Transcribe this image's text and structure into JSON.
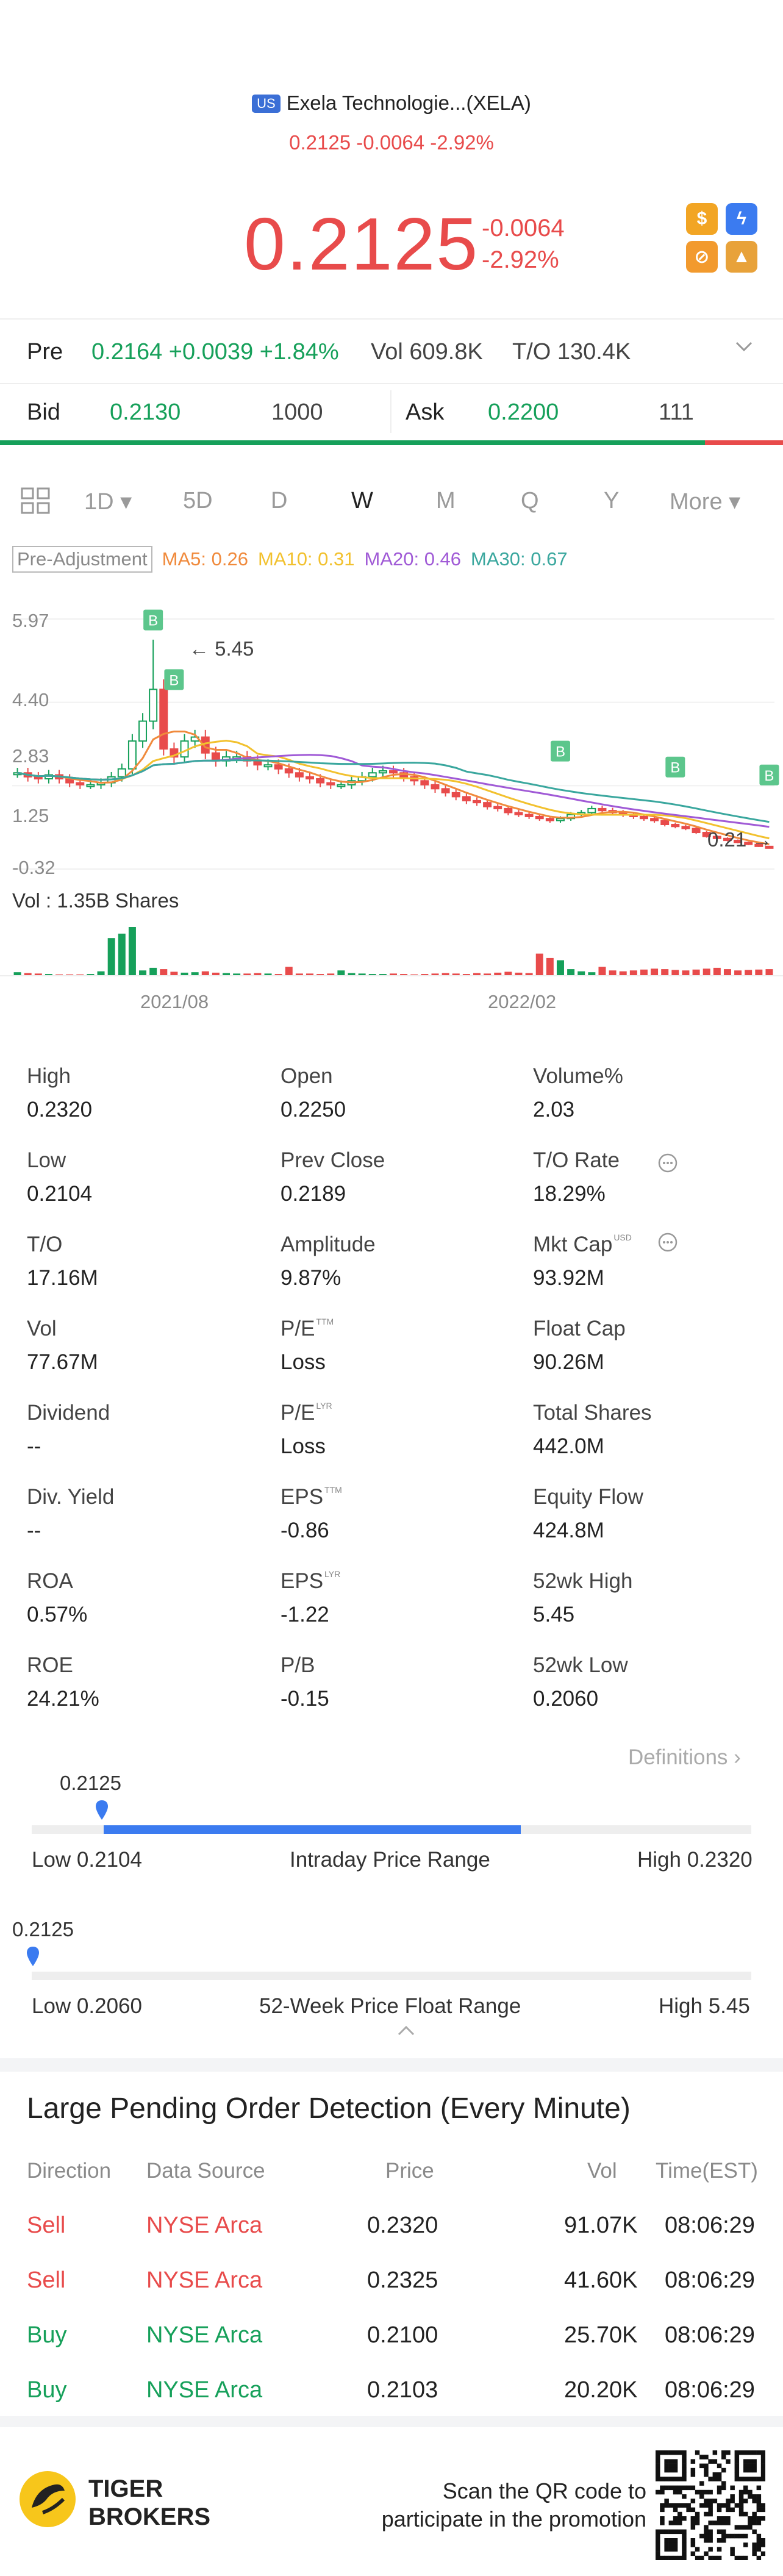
{
  "header": {
    "market_flag": "US",
    "title": "Exela Technologie...(XELA)",
    "subline": "0.2125 -0.0064 -2.92%",
    "price": "0.2125",
    "change": "-0.0064",
    "change_pct": "-2.92%"
  },
  "colors": {
    "up": "#16a05a",
    "down": "#e84b4b",
    "accent": "#3b7bf0"
  },
  "pre": {
    "label": "Pre",
    "price_change": "0.2164 +0.0039 +1.84%",
    "vol": "Vol 609.8K",
    "to": "T/O 130.4K"
  },
  "bidask": {
    "bid_label": "Bid",
    "bid": "0.2130",
    "bid_size": "1000",
    "ask_label": "Ask",
    "ask": "0.2200",
    "ask_size": "111",
    "bid_share": 0.9
  },
  "tabs": [
    "1D",
    "5D",
    "D",
    "W",
    "M",
    "Q",
    "Y",
    "More"
  ],
  "active_tab": "W",
  "ma": {
    "pre_adj": "Pre-Adjustment",
    "ma5": "MA5: 0.26",
    "ma10": "MA10: 0.31",
    "ma20": "MA20: 0.46",
    "ma30": "MA30: 0.67"
  },
  "chart_data": {
    "type": "candlestick",
    "y_ticks": [
      "5.97",
      "4.40",
      "2.83",
      "1.25",
      "-0.32"
    ],
    "ylim": [
      -0.32,
      5.97
    ],
    "x_ticks": [
      "2021/08",
      "2022/02"
    ],
    "annotations": [
      "5.45",
      "0.21"
    ],
    "volume_label": "Vol  : 1.35B Shares",
    "trade_marker": "B",
    "ma_colors": {
      "ma5": "#f08a3c",
      "ma10": "#f2c12e",
      "ma20": "#a05ad6",
      "ma30": "#3aa79e"
    },
    "weekly_close": [
      2.1,
      2.0,
      1.95,
      2.05,
      1.95,
      1.85,
      1.8,
      1.8,
      1.85,
      2.0,
      2.2,
      2.9,
      3.4,
      4.2,
      2.7,
      2.5,
      2.9,
      3.0,
      2.6,
      2.4,
      2.5,
      2.5,
      2.4,
      2.3,
      2.3,
      2.2,
      2.1,
      2.0,
      1.95,
      1.85,
      1.8,
      1.8,
      1.9,
      2.0,
      2.1,
      2.15,
      2.1,
      2.0,
      1.9,
      1.8,
      1.7,
      1.6,
      1.5,
      1.4,
      1.35,
      1.25,
      1.2,
      1.1,
      1.05,
      1.0,
      0.95,
      0.9,
      0.95,
      1.05,
      1.1,
      1.2,
      1.15,
      1.1,
      1.05,
      1.0,
      0.95,
      0.9,
      0.8,
      0.75,
      0.7,
      0.6,
      0.5,
      0.45,
      0.4,
      0.35,
      0.3,
      0.25,
      0.21
    ],
    "weekly_volume": [
      8,
      6,
      5,
      4,
      3,
      3,
      3,
      4,
      10,
      85,
      95,
      110,
      12,
      18,
      15,
      9,
      7,
      8,
      10,
      7,
      6,
      5,
      5,
      6,
      5,
      4,
      20,
      5,
      5,
      4,
      5,
      12,
      6,
      5,
      4,
      4,
      5,
      4,
      3,
      4,
      5,
      6,
      5,
      4,
      6,
      5,
      7,
      9,
      7,
      6,
      50,
      40,
      35,
      15,
      10,
      8,
      20,
      12,
      10,
      12,
      14,
      16,
      15,
      13,
      12,
      14,
      16,
      18,
      15,
      12,
      13,
      14,
      15
    ]
  },
  "stats": [
    [
      {
        "label": "High",
        "value": "0.2320"
      },
      {
        "label": "Open",
        "value": "0.2250"
      },
      {
        "label": "Volume%",
        "value": "2.03"
      }
    ],
    [
      {
        "label": "Low",
        "value": "0.2104"
      },
      {
        "label": "Prev Close",
        "value": "0.2189"
      },
      {
        "label": "T/O Rate",
        "value": "18.29%"
      }
    ],
    [
      {
        "label": "T/O",
        "value": "17.16M"
      },
      {
        "label": "Amplitude",
        "value": "9.87%"
      },
      {
        "label": "Mkt Cap",
        "value": "93.92M",
        "sup": "USD"
      }
    ],
    [
      {
        "label": "Vol",
        "value": "77.67M"
      },
      {
        "label": "P/E",
        "value": "Loss",
        "sup": "TTM"
      },
      {
        "label": "Float Cap",
        "value": "90.26M"
      }
    ],
    [
      {
        "label": "Dividend",
        "value": "--"
      },
      {
        "label": "P/E",
        "value": "Loss",
        "sup": "LYR"
      },
      {
        "label": "Total Shares",
        "value": "442.0M"
      }
    ],
    [
      {
        "label": "Div. Yield",
        "value": "--"
      },
      {
        "label": "EPS",
        "value": "-0.86",
        "sup": "TTM"
      },
      {
        "label": "Equity Flow",
        "value": "424.8M"
      }
    ],
    [
      {
        "label": "ROA",
        "value": "0.57%"
      },
      {
        "label": "EPS",
        "value": "-1.22",
        "sup": "LYR"
      },
      {
        "label": "52wk High",
        "value": "5.45"
      }
    ],
    [
      {
        "label": "ROE",
        "value": "24.21%"
      },
      {
        "label": "P/B",
        "value": "-0.15"
      },
      {
        "label": "52wk Low",
        "value": "0.2060"
      }
    ]
  ],
  "definitions_label": "Definitions",
  "intraday": {
    "marker": "0.2125",
    "low": "Low 0.2104",
    "title": "Intraday Price Range",
    "high": "High 0.2320",
    "marker_frac": 0.1,
    "range_start": 0.1,
    "range_end": 0.68
  },
  "week52": {
    "marker": "0.2125",
    "low": "Low 0.2060",
    "title": "52-Week Price Float Range",
    "high": "High 5.45",
    "marker_frac": 0.0
  },
  "pending": {
    "title": "Large Pending Order Detection (Every Minute)",
    "columns": [
      "Direction",
      "Data Source",
      "Price",
      "Vol",
      "Time(EST)"
    ],
    "rows": [
      {
        "dir": "Sell",
        "source": "NYSE Arca",
        "price": "0.2320",
        "vol": "91.07K",
        "time": "08:06:29"
      },
      {
        "dir": "Sell",
        "source": "NYSE Arca",
        "price": "0.2325",
        "vol": "41.60K",
        "time": "08:06:29"
      },
      {
        "dir": "Buy",
        "source": "NYSE Arca",
        "price": "0.2100",
        "vol": "25.70K",
        "time": "08:06:29"
      },
      {
        "dir": "Buy",
        "source": "NYSE Arca",
        "price": "0.2103",
        "vol": "20.20K",
        "time": "08:06:29"
      }
    ]
  },
  "footer": {
    "brand_line1": "TIGER",
    "brand_line2": "BROKERS",
    "promo_line1": "Scan the QR code to",
    "promo_line2": "participate in the promotion"
  }
}
